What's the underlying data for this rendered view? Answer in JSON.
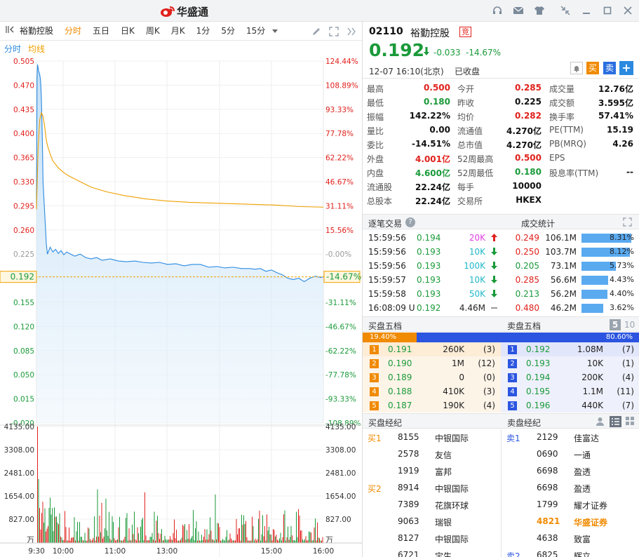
{
  "app": {
    "name": "华盛通"
  },
  "toolbar": {
    "tabs": [
      "分时",
      "五日",
      "日K",
      "周K",
      "月K",
      "1分",
      "5分",
      "15分"
    ],
    "active": "分时",
    "stock_name": "裕勤控股"
  },
  "legend": {
    "a": "分时",
    "b": "均线"
  },
  "chart_data": {
    "type": "line",
    "prev_close": 0.225,
    "x_ticks": [
      "9:30",
      "10:00",
      "11:00",
      "13:00",
      "15:00",
      "16:00"
    ],
    "y_ticks_left": [
      "0.505",
      "0.470",
      "0.435",
      "0.400",
      "0.365",
      "0.330",
      "0.295",
      "0.260",
      "0.225",
      "0.190",
      "0.155",
      "0.120",
      "0.085",
      "0.050",
      "0.015",
      "-0.020"
    ],
    "y_ticks_right": [
      "124.44%",
      "108.89%",
      "93.33%",
      "77.78%",
      "62.22%",
      "46.67%",
      "31.11%",
      "15.56%",
      "-0.00%",
      "-15.56%",
      "-31.11%",
      "-46.67%",
      "-62.22%",
      "-77.78%",
      "-93.33%",
      "-108.89%"
    ],
    "ylim": [
      -0.02,
      0.505
    ],
    "current": {
      "price": "0.192",
      "pct": "-14.67%"
    },
    "series": [
      {
        "t": [
          0,
          1,
          2,
          3,
          4,
          5,
          6,
          7,
          8,
          9,
          10,
          11,
          12,
          14,
          16,
          18,
          20,
          25,
          30,
          35,
          40,
          45,
          50,
          55,
          60,
          70,
          80,
          90,
          100,
          110,
          120,
          135,
          150,
          165,
          180,
          195,
          210,
          225,
          240,
          255,
          270,
          285,
          300,
          315,
          330,
          345,
          360,
          375,
          390,
          400,
          410,
          420,
          430,
          440,
          450,
          460,
          470,
          480,
          490,
          500,
          510,
          520,
          525
        ],
        "price": [
          0.29,
          0.48,
          0.5,
          0.495,
          0.49,
          0.488,
          0.485,
          0.48,
          0.47,
          0.45,
          0.42,
          0.38,
          0.33,
          0.3,
          0.27,
          0.24,
          0.225,
          0.235,
          0.228,
          0.232,
          0.226,
          0.23,
          0.224,
          0.228,
          0.226,
          0.222,
          0.225,
          0.22,
          0.218,
          0.22,
          0.216,
          0.218,
          0.215,
          0.214,
          0.215,
          0.213,
          0.212,
          0.213,
          0.21,
          0.211,
          0.208,
          0.21,
          0.21,
          0.206,
          0.207,
          0.205,
          0.206,
          0.204,
          0.204,
          0.203,
          0.204,
          0.2,
          0.202,
          0.198,
          0.195,
          0.19,
          0.188,
          0.19,
          0.185,
          0.19,
          0.193,
          0.191,
          0.192
        ]
      },
      {
        "t": [
          0,
          3,
          6,
          9,
          12,
          15,
          18,
          21,
          25,
          30,
          40,
          50,
          60,
          80,
          100,
          130,
          160,
          200,
          240,
          280,
          320,
          360,
          400,
          440,
          480,
          525
        ],
        "avg": [
          0.29,
          0.38,
          0.42,
          0.43,
          0.425,
          0.41,
          0.39,
          0.38,
          0.37,
          0.36,
          0.35,
          0.343,
          0.338,
          0.33,
          0.322,
          0.315,
          0.31,
          0.305,
          0.302,
          0.3,
          0.299,
          0.298,
          0.297,
          0.296,
          0.294,
          0.293
        ]
      }
    ],
    "volume": {
      "y_ticks": [
        "4135.00",
        "3308.00",
        "2481.00",
        "1654.00",
        "827.00"
      ],
      "unit": "万",
      "max": 4135
    }
  },
  "quote": {
    "code": "02110",
    "name": "裕勤控股",
    "badge": "竞",
    "price": "0.192",
    "change": "-0.033",
    "pct": "-14.67%",
    "time": "12-07  16:10(北京)",
    "status": "已收盘",
    "buy": "买",
    "sell": "卖",
    "add": "+",
    "stats": [
      [
        [
          "最高",
          "0.500",
          "red"
        ],
        [
          "今开",
          "0.285",
          "red"
        ],
        [
          "成交量",
          "12.76亿",
          "blk"
        ]
      ],
      [
        [
          "最低",
          "0.180",
          "green"
        ],
        [
          "昨收",
          "0.225",
          "blk"
        ],
        [
          "成交额",
          "3.595亿",
          "blk"
        ]
      ],
      [
        [
          "振幅",
          "142.22%",
          "blk"
        ],
        [
          "均价",
          "0.282",
          "red"
        ],
        [
          "换手率",
          "57.41%",
          "blk"
        ]
      ],
      [
        [
          "量比",
          "0.00",
          "blk"
        ],
        [
          "流通值",
          "4.270亿",
          "blk"
        ],
        [
          "PE(TTM)",
          "15.19",
          "blk"
        ]
      ],
      [
        [
          "委比",
          "-14.51%",
          "blk"
        ],
        [
          "总市值",
          "4.270亿",
          "blk"
        ],
        [
          "PB(MRQ)",
          "4.26",
          "blk"
        ]
      ],
      [
        [
          "外盘",
          "4.001亿",
          "red"
        ],
        [
          "52周最高",
          "0.500",
          "red"
        ],
        [
          "EPS",
          "",
          "blk"
        ]
      ],
      [
        [
          "内盘",
          "4.600亿",
          "green"
        ],
        [
          "52周最低",
          "0.180",
          "green"
        ],
        [
          "股息率(TTM)",
          "--",
          "blk"
        ]
      ],
      [
        [
          "流通股",
          "22.24亿",
          "blk"
        ],
        [
          "每手",
          "10000",
          "blk"
        ],
        [
          "",
          "",
          ""
        ]
      ],
      [
        [
          "总股本",
          "22.24亿",
          "blk"
        ],
        [
          "交易所",
          "HKEX",
          "blk"
        ],
        [
          "",
          "",
          ""
        ]
      ]
    ]
  },
  "ticks": {
    "title": "逐笔交易",
    "help": "?",
    "rows": [
      {
        "time": "15:59:56",
        "price": "0.194",
        "vol": "20K",
        "dir": "up",
        "vc": "#e040e0"
      },
      {
        "time": "15:59:56",
        "price": "0.193",
        "vol": "10K",
        "dir": "down",
        "vc": "#20b8c8"
      },
      {
        "time": "15:59:56",
        "price": "0.193",
        "vol": "100K",
        "dir": "down",
        "vc": "#20b8c8"
      },
      {
        "time": "15:59:57",
        "price": "0.193",
        "vol": "10K",
        "dir": "down",
        "vc": "#20b8c8"
      },
      {
        "time": "15:59:58",
        "price": "0.193",
        "vol": "50K",
        "dir": "down",
        "vc": "#20b8c8"
      },
      {
        "time": "16:08:09 U",
        "price": "0.192",
        "vol": "4.46M",
        "dir": "flat",
        "vc": "#222"
      }
    ]
  },
  "volstats": {
    "title": "成交统计",
    "rows": [
      {
        "price": "0.249",
        "vol": "106.1M",
        "pct": "8.31%",
        "c": "red",
        "f": 0.831
      },
      {
        "price": "0.250",
        "vol": "103.7M",
        "pct": "8.12%",
        "c": "red",
        "f": 0.812
      },
      {
        "price": "0.205",
        "vol": "73.1M",
        "pct": "5.73%",
        "c": "green",
        "f": 0.573
      },
      {
        "price": "0.285",
        "vol": "56.6M",
        "pct": "4.43%",
        "c": "red",
        "f": 0.443
      },
      {
        "price": "0.213",
        "vol": "56.2M",
        "pct": "4.40%",
        "c": "green",
        "f": 0.44
      },
      {
        "price": "0.480",
        "vol": "46.2M",
        "pct": "3.62%",
        "c": "red",
        "f": 0.362
      }
    ]
  },
  "depth": {
    "bid_title": "买盘五档",
    "ask_title": "卖盘五档",
    "n5": "5",
    "n10": "10",
    "bid_pct": "19.40%",
    "ask_pct": "80.60%",
    "bid_frac": 0.194,
    "bids": [
      [
        "1",
        "0.191",
        "260K",
        "(3)"
      ],
      [
        "2",
        "0.190",
        "1M",
        "(12)"
      ],
      [
        "3",
        "0.189",
        "0",
        "(0)"
      ],
      [
        "4",
        "0.188",
        "410K",
        "(3)"
      ],
      [
        "5",
        "0.187",
        "190K",
        "(4)"
      ]
    ],
    "asks": [
      [
        "1",
        "0.192",
        "1.08M",
        "(7)"
      ],
      [
        "2",
        "0.193",
        "10K",
        "(1)"
      ],
      [
        "3",
        "0.194",
        "200K",
        "(4)"
      ],
      [
        "4",
        "0.195",
        "1.1M",
        "(11)"
      ],
      [
        "5",
        "0.196",
        "440K",
        "(7)"
      ]
    ]
  },
  "brokers": {
    "bid_title": "买盘经纪",
    "ask_title": "卖盘经纪",
    "bids": [
      [
        "买1",
        "8155",
        "中银国际"
      ],
      [
        "",
        "2578",
        "友信"
      ],
      [
        "",
        "1919",
        "富邦"
      ],
      [
        "买2",
        "8914",
        "中银国际"
      ],
      [
        "",
        "7389",
        "花旗环球"
      ],
      [
        "",
        "9063",
        "瑞银"
      ],
      [
        "",
        "8127",
        "中银国际"
      ],
      [
        "",
        "6721",
        "宝生"
      ]
    ],
    "asks": [
      [
        "卖1",
        "2129",
        "佳富达"
      ],
      [
        "",
        "0690",
        "一通"
      ],
      [
        "",
        "6698",
        "盈透"
      ],
      [
        "",
        "6698",
        "盈透"
      ],
      [
        "",
        "1799",
        "耀才证券"
      ],
      [
        "",
        "4821",
        "华盛证券"
      ],
      [
        "",
        "4638",
        "致富"
      ],
      [
        "卖2",
        "6825",
        "辉立"
      ]
    ]
  }
}
